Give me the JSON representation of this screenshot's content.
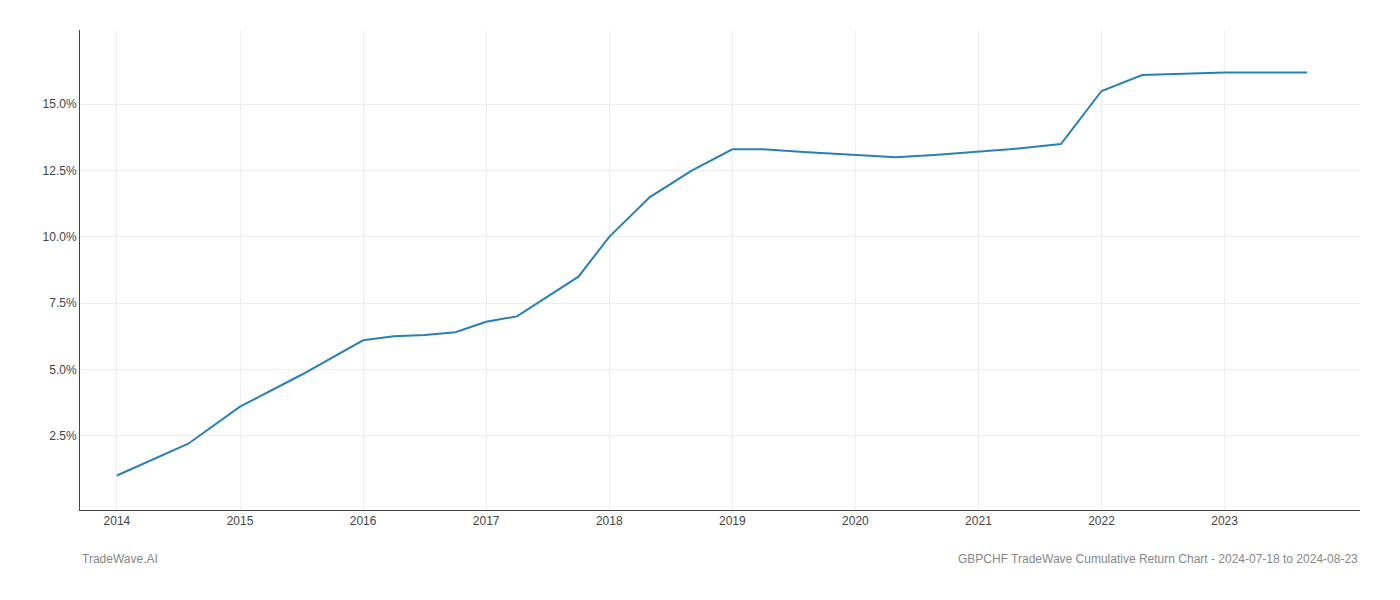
{
  "chart_data": {
    "type": "line",
    "x": [
      2014.0,
      2014.58,
      2015.0,
      2015.5,
      2016.0,
      2016.25,
      2016.5,
      2016.75,
      2017.0,
      2017.25,
      2017.75,
      2018.0,
      2018.33,
      2018.67,
      2019.0,
      2019.25,
      2019.58,
      2020.0,
      2020.33,
      2020.67,
      2021.0,
      2021.25,
      2021.67,
      2022.0,
      2022.33,
      2023.0,
      2023.67
    ],
    "values": [
      1.0,
      2.2,
      3.6,
      4.8,
      6.1,
      6.25,
      6.3,
      6.4,
      6.8,
      7.0,
      8.5,
      10.0,
      11.5,
      12.5,
      13.3,
      13.3,
      13.2,
      13.1,
      13.0,
      13.1,
      13.2,
      13.3,
      13.5,
      15.5,
      16.1,
      16.2,
      16.2
    ],
    "color": "#2980b9",
    "xlim": [
      2013.7,
      2024.1
    ],
    "ylim": [
      -0.3,
      17.8
    ],
    "xticks": [
      2014,
      2015,
      2016,
      2017,
      2018,
      2019,
      2020,
      2021,
      2022,
      2023
    ],
    "yticks": [
      {
        "value": 2.5,
        "label": "2.5%"
      },
      {
        "value": 5.0,
        "label": "5.0%"
      },
      {
        "value": 7.5,
        "label": "7.5%"
      },
      {
        "value": 10.0,
        "label": "10.0%"
      },
      {
        "value": 12.5,
        "label": "12.5%"
      },
      {
        "value": 15.0,
        "label": "15.0%"
      }
    ],
    "grid": true,
    "annotations": [
      "TradeWave.AI",
      "GBPCHF TradeWave Cumulative Return Chart - 2024-07-18 to 2024-08-23"
    ]
  }
}
